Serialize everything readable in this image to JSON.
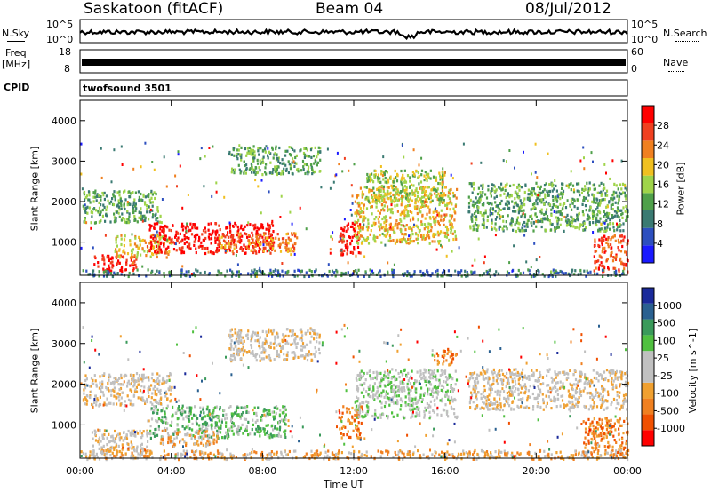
{
  "header": {
    "station": "Saskatoon (fitACF)",
    "beam": "Beam 04",
    "date": "08/Jul/2012"
  },
  "noise_panel": {
    "left_label": "N.Sky",
    "right_label": "N.Search",
    "left_ticks": [
      "10^5",
      "10^0"
    ],
    "right_ticks": [
      "10^5",
      "10^0"
    ]
  },
  "freq_panel": {
    "left_label_1": "Freq",
    "left_label_2": "[MHz]",
    "right_label": "Nave",
    "left_ticks": [
      "18",
      "8"
    ],
    "right_ticks": [
      "60",
      "0"
    ]
  },
  "cpid_panel": {
    "label": "CPID",
    "value": "twofsound 3501"
  },
  "colors": {
    "power_scale": [
      "#1a1aff",
      "#2d4fbf",
      "#3a7a72",
      "#4fa04a",
      "#9fd44a",
      "#f0c020",
      "#f08020",
      "#f04020",
      "#ff0000"
    ],
    "velocity_scale": [
      "#ff0000",
      "#f05000",
      "#f08020",
      "#f0a030",
      "#c0c0c0",
      "#c0c0c0",
      "#50c040",
      "#3a9a5a",
      "#2a6090",
      "#1a2a9a"
    ]
  },
  "chart_data": [
    {
      "type": "heatmap",
      "title": "",
      "xlabel": "Time UT",
      "ylabel": "Slant Range [km]",
      "x_ticks": [
        "00:00",
        "04:00",
        "08:00",
        "12:00",
        "16:00",
        "20:00",
        "00:00"
      ],
      "y_ticks": [
        "1000",
        "2000",
        "3000",
        "4000"
      ],
      "xlim_hours": [
        0,
        24
      ],
      "ylim_km": [
        180,
        4500
      ],
      "colorbar": {
        "label": "Power [dB]",
        "ticks": [
          "4",
          "8",
          "12",
          "16",
          "20",
          "24",
          "28"
        ],
        "range": [
          0,
          30
        ]
      },
      "echo_regions": [
        {
          "t0": 0.1,
          "t1": 3.5,
          "r0": 1500,
          "r1": 2300,
          "level": 3
        },
        {
          "t0": 0.5,
          "t1": 2.5,
          "r0": 300,
          "r1": 700,
          "level": 8
        },
        {
          "t0": 1.5,
          "t1": 4.0,
          "r0": 650,
          "r1": 1200,
          "level": 5
        },
        {
          "t0": 3.0,
          "t1": 8.5,
          "r0": 750,
          "r1": 1500,
          "level": 8
        },
        {
          "t0": 6.0,
          "t1": 9.5,
          "r0": 800,
          "r1": 1250,
          "level": 6
        },
        {
          "t0": 6.5,
          "t1": 10.5,
          "r0": 2700,
          "r1": 3400,
          "level": 3
        },
        {
          "t0": 11.3,
          "t1": 12.3,
          "r0": 700,
          "r1": 1500,
          "level": 8
        },
        {
          "t0": 12.0,
          "t1": 16.5,
          "r0": 1000,
          "r1": 2400,
          "level": 5
        },
        {
          "t0": 12.5,
          "t1": 16.0,
          "r0": 2000,
          "r1": 2800,
          "level": 4
        },
        {
          "t0": 17.0,
          "t1": 24.0,
          "r0": 1300,
          "r1": 2500,
          "level": 3
        },
        {
          "t0": 22.5,
          "t1": 24.0,
          "r0": 300,
          "r1": 1200,
          "level": 7
        },
        {
          "t0": 0.0,
          "t1": 24.0,
          "r0": 180,
          "r1": 350,
          "level": 2
        }
      ]
    },
    {
      "type": "heatmap",
      "title": "",
      "xlabel": "Time UT",
      "ylabel": "Slant Range [km]",
      "x_ticks": [
        "00:00",
        "04:00",
        "08:00",
        "12:00",
        "16:00",
        "20:00",
        "00:00"
      ],
      "y_ticks": [
        "1000",
        "2000",
        "3000",
        "4000"
      ],
      "xlim_hours": [
        0,
        24
      ],
      "ylim_km": [
        180,
        4500
      ],
      "colorbar": {
        "label": "Velocity [m s^-1]",
        "ticks": [
          "-1000",
          "-500",
          "-100",
          "-25",
          "25",
          "100",
          "500",
          "1000"
        ],
        "range": [
          -1200,
          1200
        ]
      },
      "echo_regions": [
        {
          "t0": 0.1,
          "t1": 4.0,
          "r0": 1500,
          "r1": 2300,
          "level": 4
        },
        {
          "t0": 0.5,
          "t1": 3.0,
          "r0": 200,
          "r1": 900,
          "level": 4
        },
        {
          "t0": 3.0,
          "t1": 9.0,
          "r0": 700,
          "r1": 1500,
          "level": 6
        },
        {
          "t0": 3.5,
          "t1": 6.0,
          "r0": 500,
          "r1": 900,
          "level": 3
        },
        {
          "t0": 6.5,
          "t1": 10.5,
          "r0": 2600,
          "r1": 3400,
          "level": 4
        },
        {
          "t0": 11.3,
          "t1": 12.3,
          "r0": 700,
          "r1": 1500,
          "level": 2
        },
        {
          "t0": 12.0,
          "t1": 16.5,
          "r0": 1200,
          "r1": 2400,
          "level": 5
        },
        {
          "t0": 15.5,
          "t1": 16.5,
          "r0": 2500,
          "r1": 2900,
          "level": 2
        },
        {
          "t0": 17.0,
          "t1": 24.0,
          "r0": 1400,
          "r1": 2400,
          "level": 4
        },
        {
          "t0": 22.0,
          "t1": 24.0,
          "r0": 300,
          "r1": 1200,
          "level": 2
        },
        {
          "t0": 0.0,
          "t1": 24.0,
          "r0": 180,
          "r1": 400,
          "level": 3
        }
      ]
    }
  ]
}
